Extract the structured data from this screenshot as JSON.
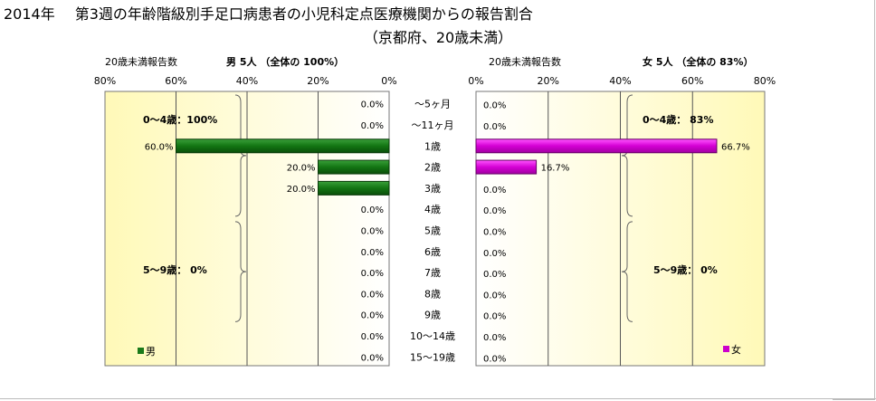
{
  "title": {
    "year": "2014年",
    "main": "第3週の年齢階級別手足口病患者の小児科定点医療機関からの報告割合",
    "sub": "（京都府、20歳未満）"
  },
  "age_labels": [
    "～5ヶ月",
    "～11ヶ月",
    "1歳",
    "2歳",
    "3歳",
    "4歳",
    "5歳",
    "6歳",
    "7歳",
    "8歳",
    "9歳",
    "10～14歳",
    "15～19歳"
  ],
  "chart_data": [
    {
      "type": "bar",
      "orientation": "horizontal",
      "direction": "right-to-left",
      "panel": "male",
      "axis_caption": "20歳未満報告数",
      "header": "男 5人 （全体の 100%）",
      "xlim": [
        0,
        80
      ],
      "tick_labels": [
        "80%",
        "60%",
        "40%",
        "20%",
        "0%"
      ],
      "categories": [
        "～5ヶ月",
        "～11ヶ月",
        "1歳",
        "2歳",
        "3歳",
        "4歳",
        "5歳",
        "6歳",
        "7歳",
        "8歳",
        "9歳",
        "10～14歳",
        "15～19歳"
      ],
      "values": [
        0,
        0,
        60,
        20,
        20,
        0,
        0,
        0,
        0,
        0,
        0,
        0,
        0
      ],
      "data_labels": [
        "0.0%",
        "0.0%",
        "60.0%",
        "20.0%",
        "20.0%",
        "0.0%",
        "0.0%",
        "0.0%",
        "0.0%",
        "0.0%",
        "0.0%",
        "0.0%",
        "0.0%"
      ],
      "bar_color": "#1a7a1a",
      "annotations": [
        "0～4歳：100%",
        "5～9歳： 0%"
      ],
      "legend": "男",
      "legend_position": "bottom-left",
      "background": "yellow-gradient"
    },
    {
      "type": "bar",
      "orientation": "horizontal",
      "direction": "left-to-right",
      "panel": "female",
      "axis_caption": "20歳未満報告数",
      "header": "女 5人 （全体の 83%）",
      "xlim": [
        0,
        80
      ],
      "tick_labels": [
        "0%",
        "20%",
        "40%",
        "60%",
        "80%"
      ],
      "categories": [
        "～5ヶ月",
        "～11ヶ月",
        "1歳",
        "2歳",
        "3歳",
        "4歳",
        "5歳",
        "6歳",
        "7歳",
        "8歳",
        "9歳",
        "10～14歳",
        "15～19歳"
      ],
      "values": [
        0,
        0,
        66.7,
        16.7,
        0,
        0,
        0,
        0,
        0,
        0,
        0,
        0,
        0
      ],
      "data_labels": [
        "0.0%",
        "0.0%",
        "66.7%",
        "16.7%",
        "0.0%",
        "0.0%",
        "0.0%",
        "0.0%",
        "0.0%",
        "0.0%",
        "0.0%",
        "0.0%",
        "0.0%"
      ],
      "bar_color": "#cc00cc",
      "annotations": [
        "0～4歳： 83%",
        "5～9歳： 0%"
      ],
      "legend": "女",
      "legend_position": "bottom-right",
      "background": "yellow-gradient"
    }
  ]
}
